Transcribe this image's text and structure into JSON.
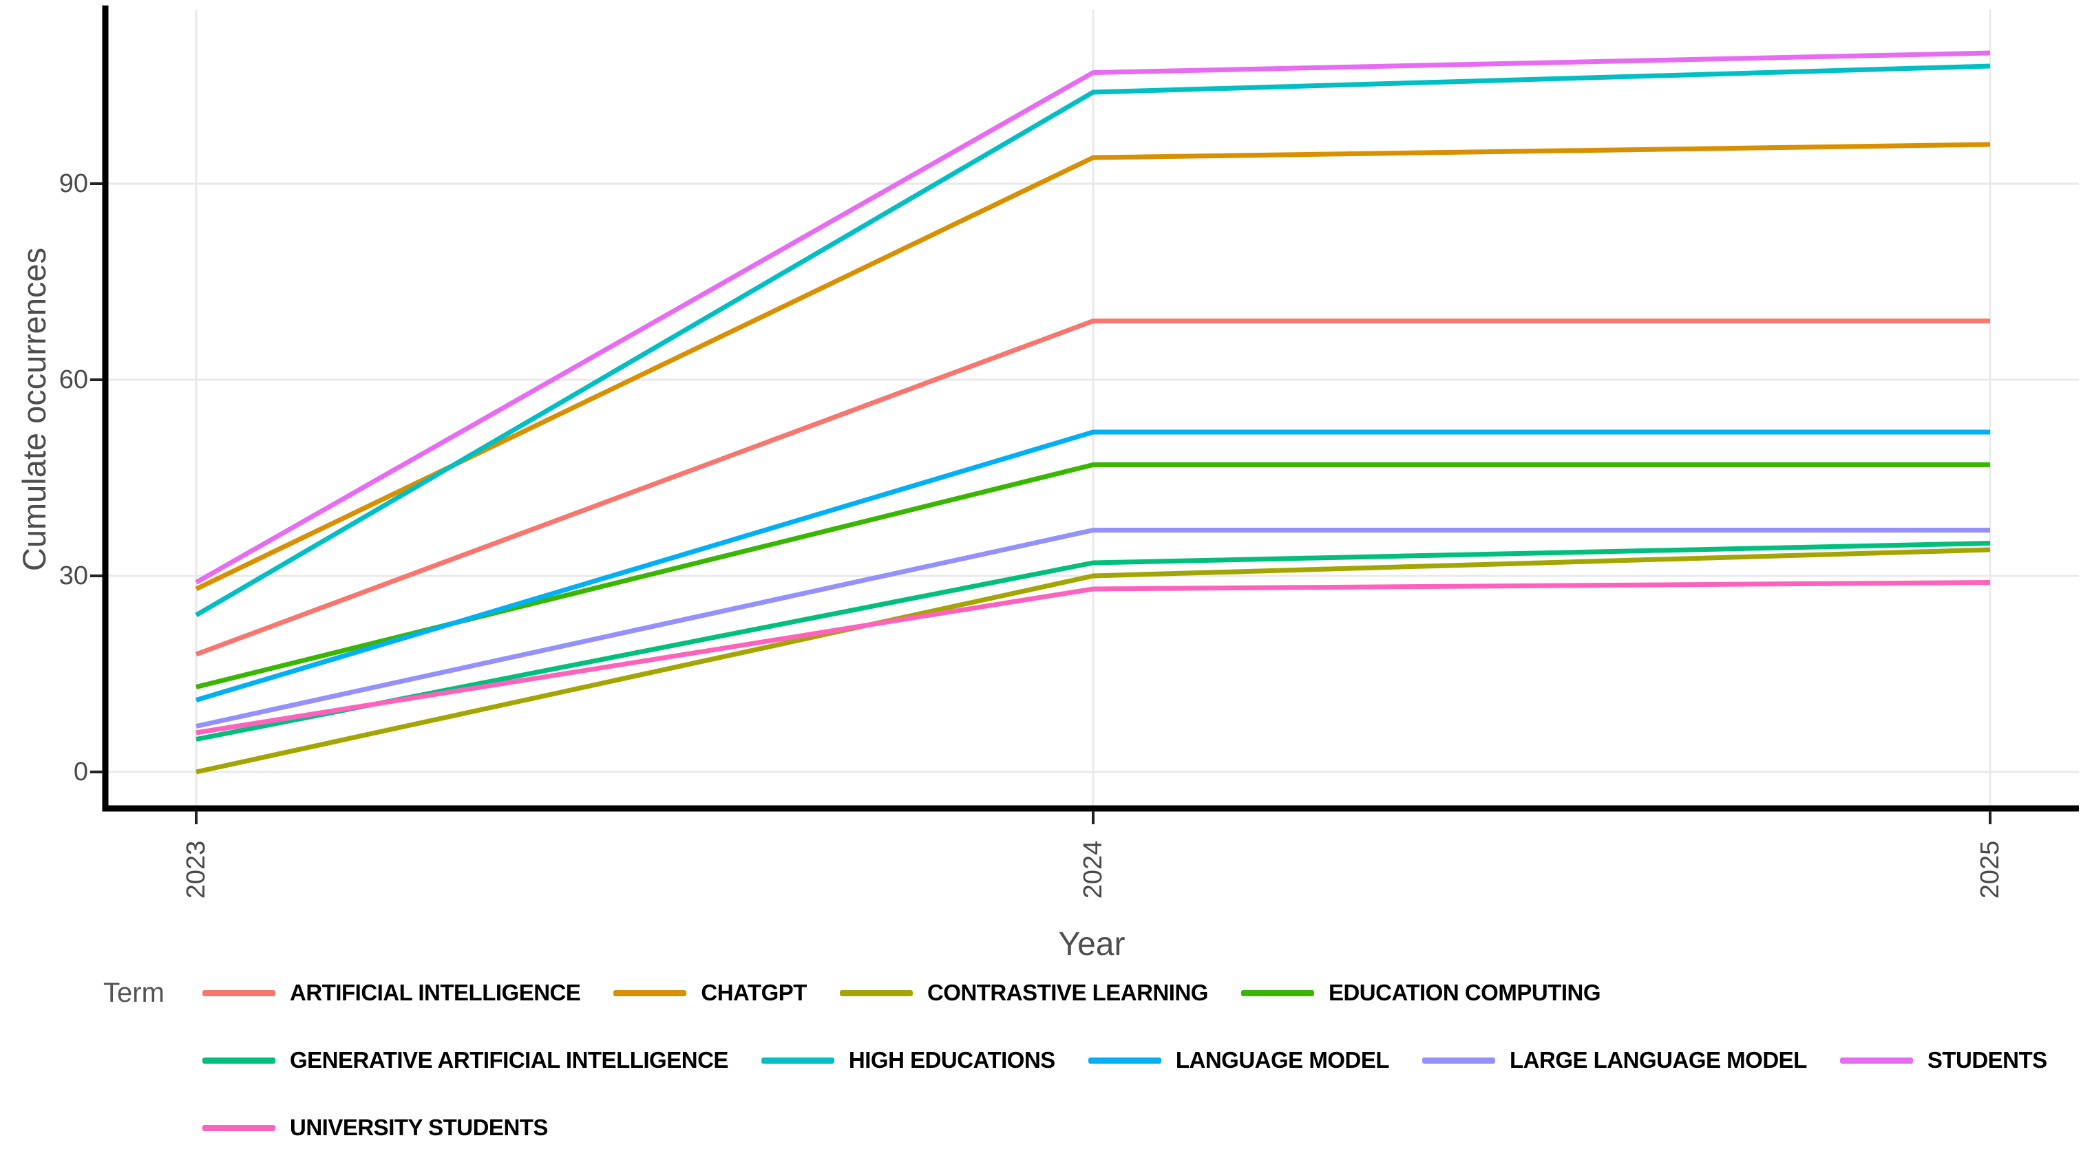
{
  "chart_data": {
    "type": "line",
    "title": "",
    "xlabel": "Year",
    "ylabel": "Cumulate occurrences",
    "legend_title": "Term",
    "legend_position": "bottom",
    "legend_rows": [
      4,
      5,
      1
    ],
    "grid": true,
    "categories": [
      "2023",
      "2024",
      "2025"
    ],
    "yticks": [
      0,
      30,
      60,
      90
    ],
    "ylim": [
      -5,
      116
    ],
    "series": [
      {
        "name": "ARTIFICIAL INTELLIGENCE",
        "color": "#F8766D",
        "values": [
          18,
          69,
          69
        ]
      },
      {
        "name": "CHATGPT",
        "color": "#D89000",
        "values": [
          28,
          94,
          96
        ]
      },
      {
        "name": "CONTRASTIVE LEARNING",
        "color": "#A3A500",
        "values": [
          0,
          30,
          34
        ]
      },
      {
        "name": "EDUCATION COMPUTING",
        "color": "#39B600",
        "values": [
          13,
          47,
          47
        ]
      },
      {
        "name": "GENERATIVE ARTIFICIAL INTELLIGENCE",
        "color": "#00BF7D",
        "values": [
          5,
          32,
          35
        ]
      },
      {
        "name": "HIGH EDUCATIONS",
        "color": "#00BFC4",
        "values": [
          24,
          104,
          108
        ]
      },
      {
        "name": "LANGUAGE MODEL",
        "color": "#00B0F6",
        "values": [
          11,
          52,
          52
        ]
      },
      {
        "name": "LARGE LANGUAGE MODEL",
        "color": "#9590FF",
        "values": [
          7,
          37,
          37
        ]
      },
      {
        "name": "STUDENTS",
        "color": "#E76BF3",
        "values": [
          29,
          107,
          110
        ]
      },
      {
        "name": "UNIVERSITY STUDENTS",
        "color": "#FF62BC",
        "values": [
          6,
          28,
          29
        ]
      }
    ],
    "style": {
      "axis_color": "#000000",
      "gridline_color": "#e9e9e9",
      "tick_label_color": "#4a4a4a",
      "axis_title_color": "#4d4d4d"
    }
  }
}
